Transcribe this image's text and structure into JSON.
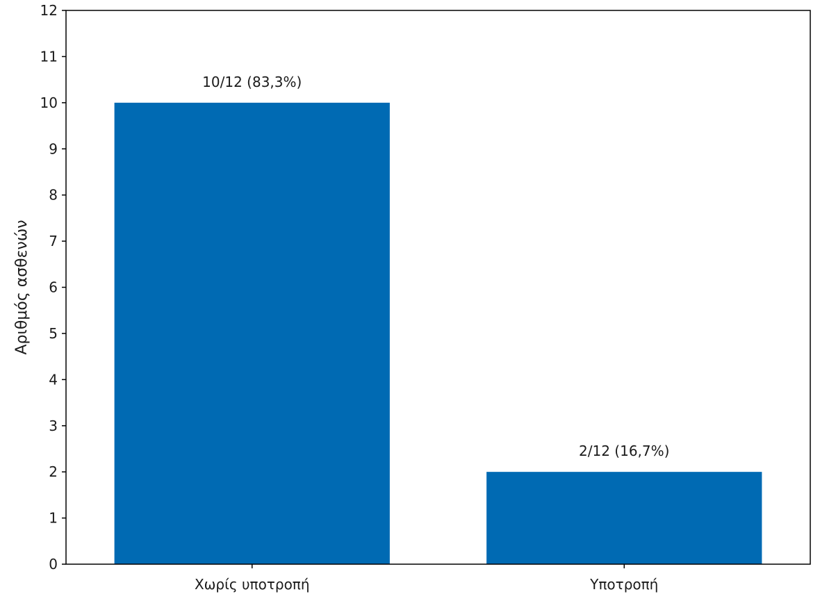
{
  "chart_data": {
    "type": "bar",
    "categories": [
      "Χωρίς υποτροπή",
      "Υποτροπή"
    ],
    "values": [
      10,
      2
    ],
    "data_labels": [
      "10/12 (83,3%)",
      "2/12 (16,7%)"
    ],
    "title": "",
    "xlabel": "",
    "ylabel": "Αριθμός ασθενών",
    "ylim": [
      0,
      12
    ],
    "yticks": [
      0,
      1,
      2,
      3,
      4,
      5,
      6,
      7,
      8,
      9,
      10,
      11,
      12
    ],
    "grid": false,
    "legend": "none",
    "bar_color": "#006ab3"
  }
}
